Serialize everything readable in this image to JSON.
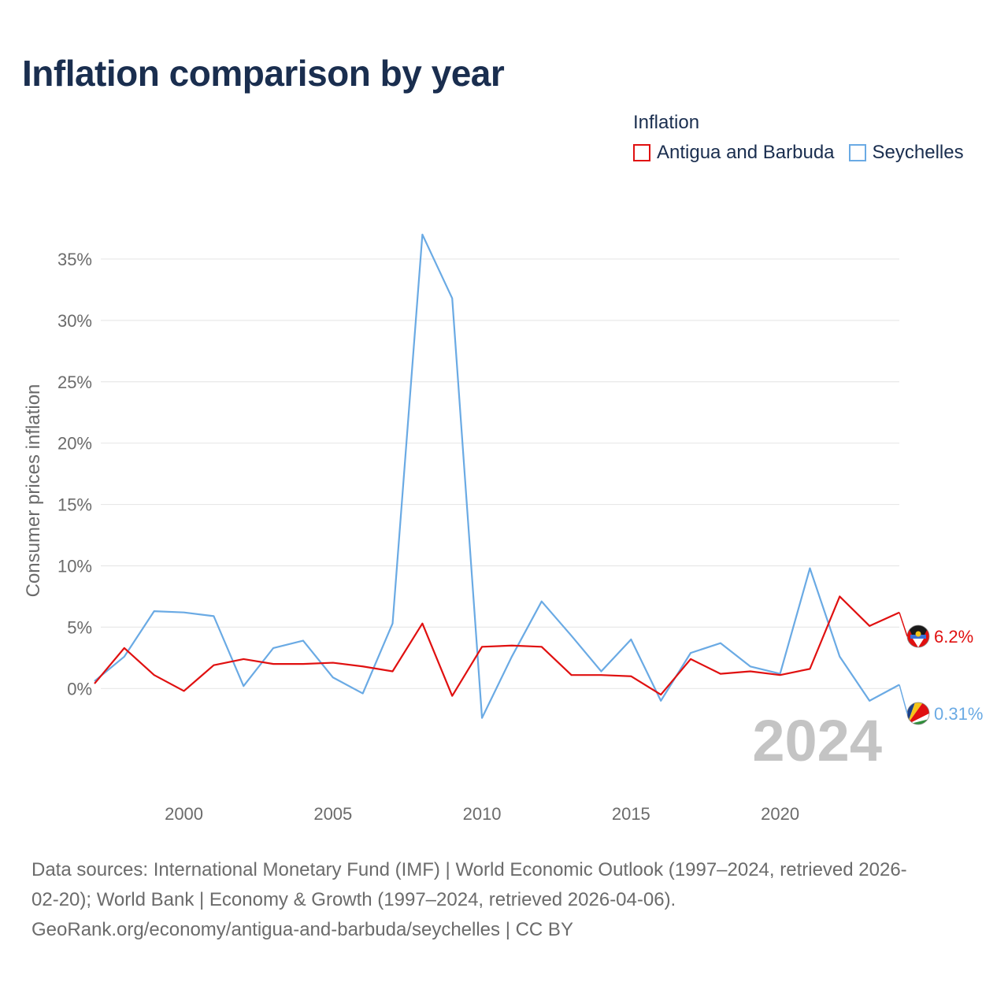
{
  "chart_data": {
    "type": "line",
    "title": "Inflation comparison by year",
    "legend_title": "Inflation",
    "ylabel": "Consumer prices inflation",
    "xlabel": "",
    "year_label": "2024",
    "x": [
      1997,
      1998,
      1999,
      2000,
      2001,
      2002,
      2003,
      2004,
      2005,
      2006,
      2007,
      2008,
      2009,
      2010,
      2011,
      2012,
      2013,
      2014,
      2015,
      2016,
      2017,
      2018,
      2019,
      2020,
      2021,
      2022,
      2023,
      2024
    ],
    "x_ticks": [
      2000,
      2005,
      2010,
      2015,
      2020
    ],
    "x_tick_labels": [
      "2000",
      "2005",
      "2010",
      "2015",
      "2020"
    ],
    "y_ticks": [
      0,
      5,
      10,
      15,
      20,
      25,
      30,
      35
    ],
    "y_tick_labels": [
      "0%",
      "5%",
      "10%",
      "15%",
      "20%",
      "25%",
      "30%",
      "35%"
    ],
    "xlim": [
      1997,
      2024
    ],
    "ylim": [
      -5.5,
      37.5
    ],
    "series": [
      {
        "name": "Antigua and Barbuda",
        "color": "#e01010",
        "end_label": "6.2%",
        "values": [
          0.4,
          3.3,
          1.1,
          -0.2,
          1.9,
          2.4,
          2.0,
          2.0,
          2.1,
          1.8,
          1.4,
          5.3,
          -0.6,
          3.4,
          3.5,
          3.4,
          1.1,
          1.1,
          1.0,
          -0.5,
          2.4,
          1.2,
          1.4,
          1.1,
          1.6,
          7.5,
          5.1,
          6.2
        ]
      },
      {
        "name": "Seychelles",
        "color": "#6aaae4",
        "end_label": "0.31%",
        "values": [
          0.6,
          2.6,
          6.3,
          6.2,
          5.9,
          0.2,
          3.3,
          3.9,
          0.9,
          -0.4,
          5.3,
          37.0,
          31.8,
          -2.4,
          2.6,
          7.1,
          4.3,
          1.4,
          4.0,
          -1.0,
          2.9,
          3.7,
          1.8,
          1.2,
          9.8,
          2.6,
          -1.0,
          0.31
        ]
      }
    ]
  },
  "footer": {
    "line1": "Data sources: International Monetary Fund (IMF) | World Economic Outlook (1997–2024, retrieved 2026-",
    "line2": "02-20); World Bank | Economy & Growth (1997–2024, retrieved 2026-04-06).",
    "line3": "GeoRank.org/economy/antigua-and-barbuda/seychelles | CC BY"
  }
}
